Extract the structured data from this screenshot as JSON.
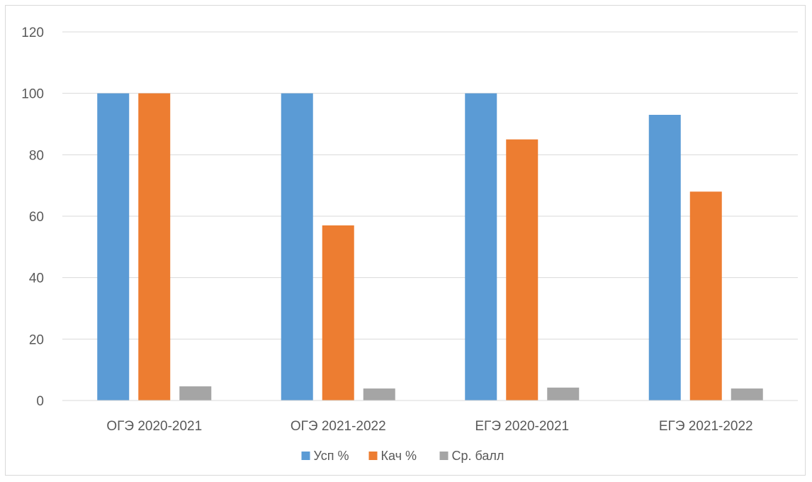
{
  "chart_data": {
    "type": "bar",
    "title": "",
    "xlabel": "",
    "ylabel": "",
    "categories": [
      "ОГЭ 2020-2021",
      "ОГЭ 2021-2022",
      "ЕГЭ 2020-2021",
      "ЕГЭ 2021-2022"
    ],
    "series": [
      {
        "name": "Усп %",
        "color": "#5b9bd5",
        "values": [
          100,
          100,
          100,
          93
        ]
      },
      {
        "name": "Кач %",
        "color": "#ed7d31",
        "values": [
          100,
          57,
          85,
          68
        ]
      },
      {
        "name": "Ср. балл",
        "color": "#a5a5a5",
        "values": [
          4.6,
          3.9,
          4.2,
          3.9
        ]
      }
    ],
    "ylim": [
      0,
      120
    ],
    "yticks": [
      0,
      20,
      40,
      60,
      80,
      100,
      120
    ],
    "grid": true,
    "legend": "bottom"
  }
}
